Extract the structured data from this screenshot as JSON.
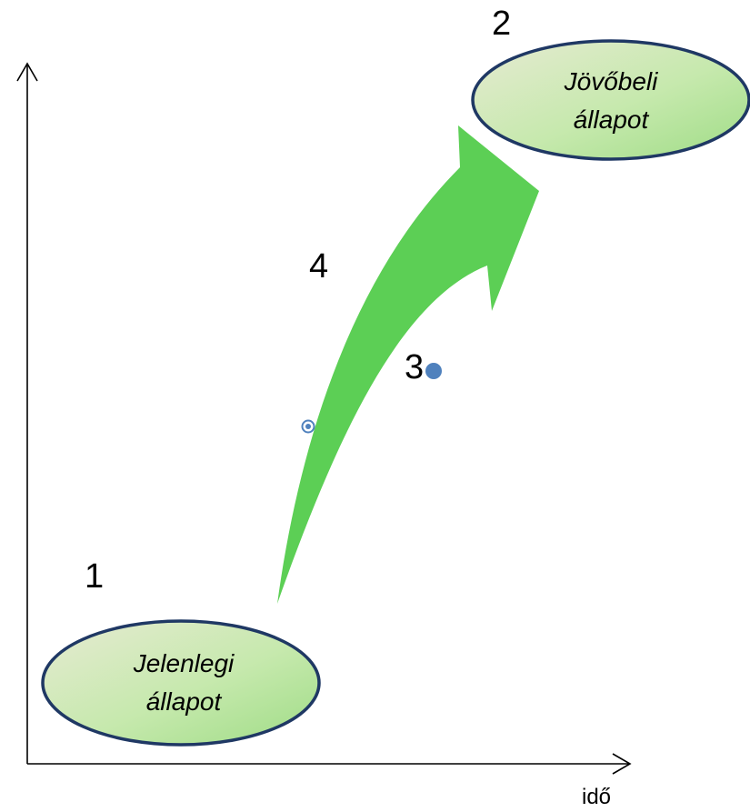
{
  "axes": {
    "x_label": "idő"
  },
  "current_state": {
    "line1": "Jelenlegi",
    "line2": "állapot",
    "number": "1"
  },
  "future_state": {
    "line1": "Jövőbeli",
    "line2": "állapot",
    "number": "2"
  },
  "markers": {
    "point_label": "3",
    "arrow_label": "4"
  },
  "colors": {
    "arrow_fill": "#5ccf55",
    "ellipse_stroke": "#1f3864",
    "ellipse_fill_light": "#eaf6dd",
    "ellipse_fill_green": "#a9dc8e",
    "point_dot": "#4f81bd"
  }
}
